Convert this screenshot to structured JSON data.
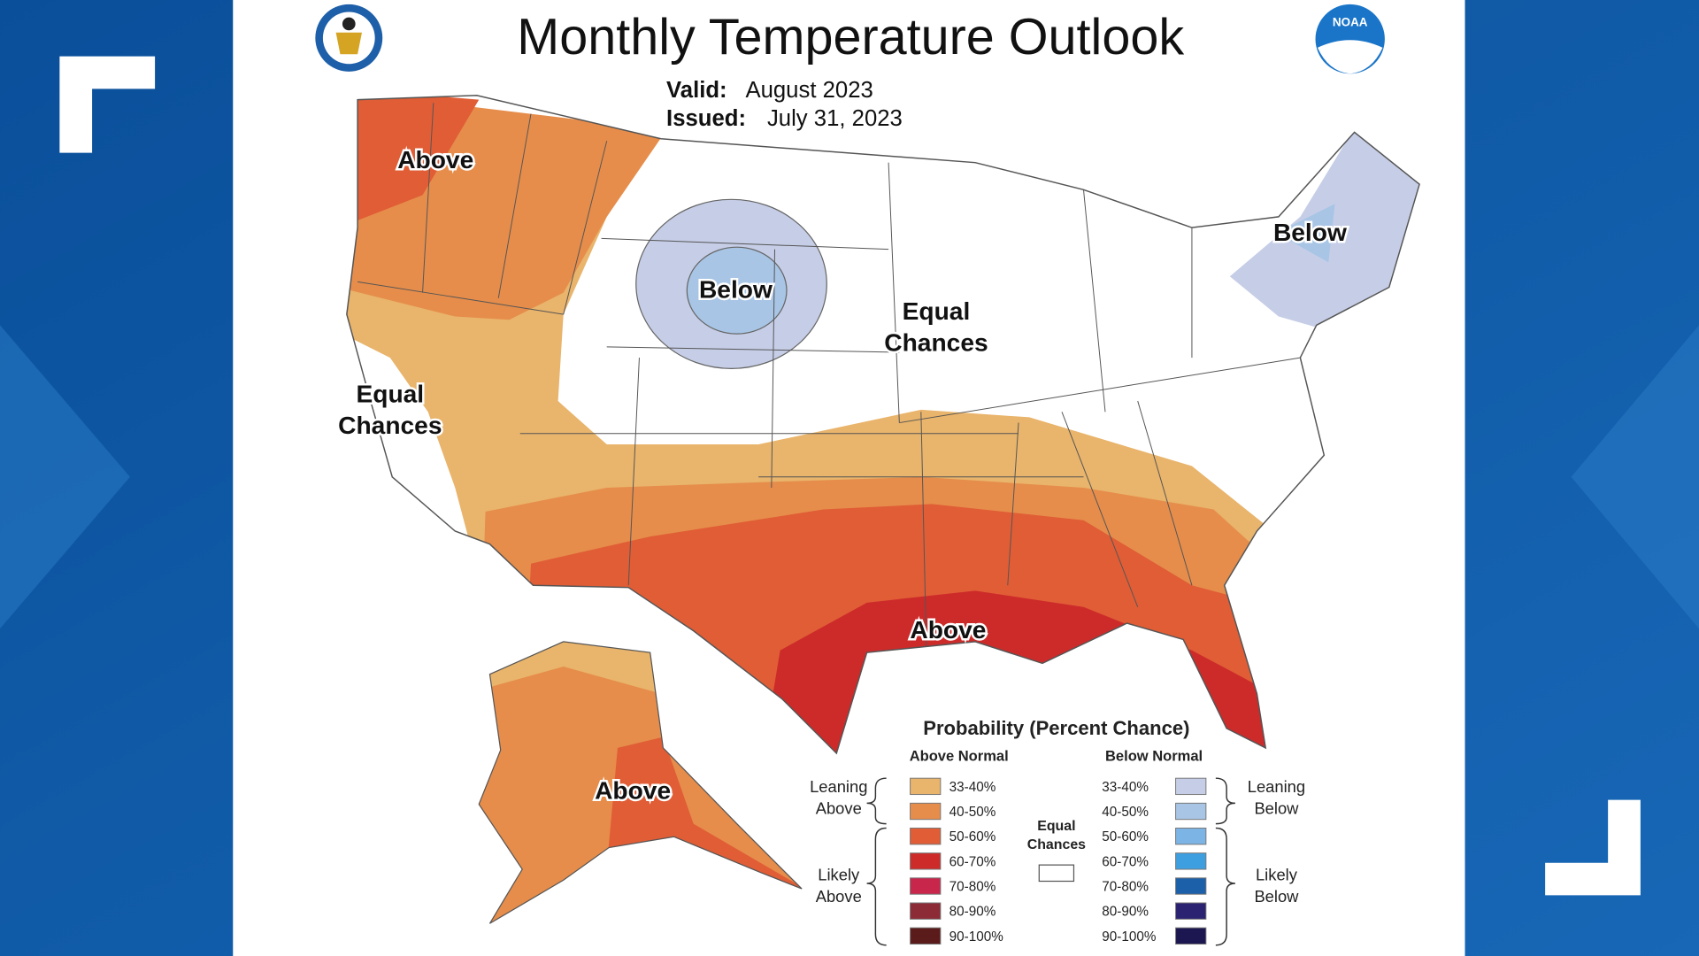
{
  "header": {
    "title": "Monthly Temperature Outlook",
    "valid_label": "Valid:",
    "valid_value": "August 2023",
    "issued_label": "Issued:",
    "issued_value": "July 31, 2023",
    "noaa_logo_text": "NOAA"
  },
  "map_labels": [
    {
      "lines": [
        "Above"
      ]
    },
    {
      "lines": [
        "Below"
      ]
    },
    {
      "lines": [
        "Equal",
        "Chances"
      ]
    },
    {
      "lines": [
        "Equal",
        "Chances"
      ]
    },
    {
      "lines": [
        "Below"
      ]
    },
    {
      "lines": [
        "Above"
      ]
    },
    {
      "lines": [
        "Above"
      ]
    }
  ],
  "legend": {
    "title": "Probability (Percent Chance)",
    "equal_chances": {
      "lines": [
        "Equal",
        "Chances"
      ],
      "color": "#ffffff"
    },
    "above": {
      "heading": "Above Normal",
      "leaning": [
        "Leaning",
        "Above"
      ],
      "likely": [
        "Likely",
        "Above"
      ],
      "items": [
        {
          "label": "33-40%",
          "color": "#e9b46b"
        },
        {
          "label": "40-50%",
          "color": "#e68d4b"
        },
        {
          "label": "50-60%",
          "color": "#e05d36"
        },
        {
          "label": "60-70%",
          "color": "#cd2b2a"
        },
        {
          "label": "70-80%",
          "color": "#c8264b"
        },
        {
          "label": "80-90%",
          "color": "#8c2a36"
        },
        {
          "label": "90-100%",
          "color": "#5b1b1b"
        }
      ]
    },
    "below": {
      "heading": "Below Normal",
      "leaning": [
        "Leaning",
        "Below"
      ],
      "likely": [
        "Likely",
        "Below"
      ],
      "items": [
        {
          "label": "33-40%",
          "color": "#c6cee7"
        },
        {
          "label": "40-50%",
          "color": "#a8c5e5"
        },
        {
          "label": "50-60%",
          "color": "#7cb5e5"
        },
        {
          "label": "60-70%",
          "color": "#3e9fe0"
        },
        {
          "label": "70-80%",
          "color": "#1c60a9"
        },
        {
          "label": "80-90%",
          "color": "#2b2271"
        },
        {
          "label": "90-100%",
          "color": "#1d1751"
        }
      ]
    }
  }
}
